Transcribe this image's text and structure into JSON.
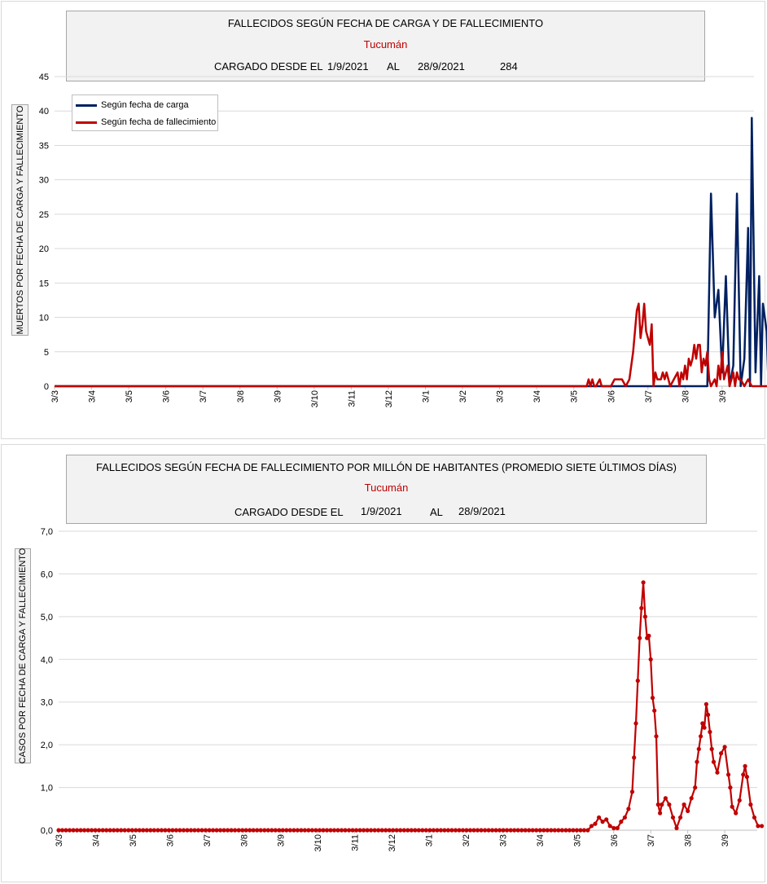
{
  "chart1": {
    "title": "FALLECIDOS SEGÚN FECHA DE CARGA Y DE FALLECIMIENTO",
    "subtitle": "Tucumán",
    "loaded_label": "CARGADO DESDE EL",
    "date_from": "1/9/2021",
    "al_label": "AL",
    "date_to": "28/9/2021",
    "total": "284",
    "ylabel": "MUERTOS  POR FECHA DE CARGA  Y FALLECIMIENTO",
    "legend": [
      {
        "name": "Según fecha de carga",
        "color": "#002060"
      },
      {
        "name": "Según fecha de fallecimiento",
        "color": "#c00000"
      }
    ]
  },
  "chart2": {
    "title": "FALLECIDOS SEGÚN FECHA DE FALLECIMIENTO POR MILLÓN DE HABITANTES (PROMEDIO SIETE ÚLTIMOS DÍAS)",
    "subtitle": "Tucumán",
    "loaded_label": "CARGADO DESDE EL",
    "date_from": "1/9/2021",
    "al_label": "AL",
    "date_to": "28/9/2021",
    "ylabel": "CASOS POR FECHA DE CARGA  Y FALLECIMIENTO"
  },
  "chart_data": [
    {
      "type": "line",
      "title": "FALLECIDOS SEGÚN FECHA DE CARGA Y DE FALLECIMIENTO",
      "subtitle": "Tucumán",
      "ylabel": "MUERTOS  POR FECHA DE CARGA  Y FALLECIMIENTO",
      "ylim": [
        0,
        45
      ],
      "yticks": [
        "0",
        "5",
        "10",
        "15",
        "20",
        "25",
        "30",
        "35",
        "40",
        "45"
      ],
      "x_tick_labels": [
        "3/3",
        "3/4",
        "3/5",
        "3/6",
        "3/7",
        "3/8",
        "3/9",
        "3/10",
        "3/11",
        "3/12",
        "3/1",
        "3/2",
        "3/3",
        "3/4",
        "3/5",
        "3/6",
        "3/7",
        "3/8",
        "3/9"
      ],
      "grid": true,
      "legend_position": "top-left",
      "series": [
        {
          "name": "Según fecha de carga",
          "color": "#002060",
          "points": [
            [
              0,
              0
            ],
            [
              17.6,
              0
            ],
            [
              17.7,
              28
            ],
            [
              17.8,
              10
            ],
            [
              17.9,
              14
            ],
            [
              18.0,
              2
            ],
            [
              18.1,
              16
            ],
            [
              18.2,
              0
            ],
            [
              18.3,
              3
            ],
            [
              18.4,
              28
            ],
            [
              18.5,
              0
            ],
            [
              18.6,
              4
            ],
            [
              18.7,
              23
            ],
            [
              18.75,
              0
            ],
            [
              18.8,
              39
            ],
            [
              18.9,
              2
            ],
            [
              19.0,
              16
            ],
            [
              19.05,
              0
            ],
            [
              19.1,
              12
            ],
            [
              19.2,
              8
            ],
            [
              19.25,
              0
            ],
            [
              19.3,
              0
            ],
            [
              19.4,
              13
            ],
            [
              19.5,
              0
            ]
          ]
        },
        {
          "name": "Según fecha de fallecimiento",
          "color": "#c00000",
          "points": [
            [
              0,
              0
            ],
            [
              14.35,
              0
            ],
            [
              14.4,
              1
            ],
            [
              14.45,
              0
            ],
            [
              14.5,
              1
            ],
            [
              14.55,
              0
            ],
            [
              14.6,
              0
            ],
            [
              14.7,
              1
            ],
            [
              14.75,
              0
            ],
            [
              15.0,
              0
            ],
            [
              15.1,
              1
            ],
            [
              15.2,
              1
            ],
            [
              15.3,
              1
            ],
            [
              15.4,
              0
            ],
            [
              15.5,
              1
            ],
            [
              15.6,
              5
            ],
            [
              15.7,
              11
            ],
            [
              15.75,
              12
            ],
            [
              15.8,
              7
            ],
            [
              15.85,
              9
            ],
            [
              15.9,
              12
            ],
            [
              15.95,
              8
            ],
            [
              16.0,
              7
            ],
            [
              16.05,
              6
            ],
            [
              16.1,
              9
            ],
            [
              16.15,
              0
            ],
            [
              16.2,
              2
            ],
            [
              16.25,
              1
            ],
            [
              16.3,
              1
            ],
            [
              16.35,
              1
            ],
            [
              16.4,
              2
            ],
            [
              16.45,
              1
            ],
            [
              16.5,
              2
            ],
            [
              16.55,
              1
            ],
            [
              16.6,
              0
            ],
            [
              16.8,
              2
            ],
            [
              16.85,
              0
            ],
            [
              16.9,
              2
            ],
            [
              16.95,
              1
            ],
            [
              17.0,
              3
            ],
            [
              17.05,
              1
            ],
            [
              17.1,
              4
            ],
            [
              17.15,
              3
            ],
            [
              17.2,
              4
            ],
            [
              17.25,
              6
            ],
            [
              17.3,
              4
            ],
            [
              17.35,
              6
            ],
            [
              17.4,
              6
            ],
            [
              17.45,
              2
            ],
            [
              17.5,
              4
            ],
            [
              17.55,
              3
            ],
            [
              17.6,
              5
            ],
            [
              17.65,
              1
            ],
            [
              17.7,
              0
            ],
            [
              17.8,
              1
            ],
            [
              17.85,
              0
            ],
            [
              17.9,
              3
            ],
            [
              17.95,
              1
            ],
            [
              18.0,
              5
            ],
            [
              18.05,
              1
            ],
            [
              18.1,
              2
            ],
            [
              18.15,
              3
            ],
            [
              18.2,
              0
            ],
            [
              18.3,
              2
            ],
            [
              18.35,
              0
            ],
            [
              18.4,
              2
            ],
            [
              18.45,
              1
            ],
            [
              18.5,
              1
            ],
            [
              18.6,
              0
            ],
            [
              18.7,
              1
            ],
            [
              18.8,
              0
            ],
            [
              19.0,
              0
            ],
            [
              19.5,
              0
            ]
          ]
        }
      ]
    },
    {
      "type": "line",
      "title": "FALLECIDOS SEGÚN FECHA DE FALLECIMIENTO POR MILLÓN DE HABITANTES (PROMEDIO SIETE ÚLTIMOS DÍAS)",
      "subtitle": "Tucumán",
      "ylabel": "CASOS POR FECHA DE CARGA  Y FALLECIMIENTO",
      "ylim": [
        0,
        7
      ],
      "yticks": [
        "0,0",
        "1,0",
        "2,0",
        "3,0",
        "4,0",
        "5,0",
        "6,0",
        "7,0"
      ],
      "x_tick_labels": [
        "3/3",
        "3/4",
        "3/5",
        "3/6",
        "3/7",
        "3/8",
        "3/9",
        "3/10",
        "3/11",
        "3/12",
        "3/1",
        "3/2",
        "3/3",
        "3/4",
        "3/5",
        "3/6",
        "3/7",
        "3/8",
        "3/9"
      ],
      "grid": true,
      "series": [
        {
          "name": "",
          "color": "#c00000",
          "points": [
            [
              0,
              0
            ],
            [
              14.3,
              0
            ],
            [
              14.4,
              0.1
            ],
            [
              14.5,
              0.15
            ],
            [
              14.6,
              0.3
            ],
            [
              14.7,
              0.2
            ],
            [
              14.8,
              0.25
            ],
            [
              14.9,
              0.1
            ],
            [
              15.0,
              0.05
            ],
            [
              15.1,
              0.05
            ],
            [
              15.2,
              0.2
            ],
            [
              15.3,
              0.3
            ],
            [
              15.4,
              0.5
            ],
            [
              15.5,
              0.9
            ],
            [
              15.55,
              1.7
            ],
            [
              15.6,
              2.5
            ],
            [
              15.65,
              3.5
            ],
            [
              15.7,
              4.5
            ],
            [
              15.75,
              5.2
            ],
            [
              15.8,
              5.8
            ],
            [
              15.85,
              5.0
            ],
            [
              15.9,
              4.5
            ],
            [
              15.95,
              4.55
            ],
            [
              16.0,
              4.0
            ],
            [
              16.05,
              3.1
            ],
            [
              16.1,
              2.8
            ],
            [
              16.15,
              2.2
            ],
            [
              16.2,
              0.6
            ],
            [
              16.25,
              0.4
            ],
            [
              16.3,
              0.6
            ],
            [
              16.4,
              0.75
            ],
            [
              16.5,
              0.6
            ],
            [
              16.6,
              0.3
            ],
            [
              16.7,
              0.05
            ],
            [
              16.8,
              0.3
            ],
            [
              16.9,
              0.6
            ],
            [
              17.0,
              0.45
            ],
            [
              17.1,
              0.75
            ],
            [
              17.2,
              1.0
            ],
            [
              17.25,
              1.6
            ],
            [
              17.3,
              1.9
            ],
            [
              17.35,
              2.2
            ],
            [
              17.4,
              2.5
            ],
            [
              17.45,
              2.4
            ],
            [
              17.5,
              2.95
            ],
            [
              17.55,
              2.7
            ],
            [
              17.6,
              2.3
            ],
            [
              17.65,
              1.9
            ],
            [
              17.7,
              1.6
            ],
            [
              17.8,
              1.35
            ],
            [
              17.9,
              1.8
            ],
            [
              18.0,
              1.95
            ],
            [
              18.1,
              1.3
            ],
            [
              18.15,
              1.0
            ],
            [
              18.2,
              0.55
            ],
            [
              18.3,
              0.4
            ],
            [
              18.4,
              0.7
            ],
            [
              18.5,
              1.3
            ],
            [
              18.55,
              1.5
            ],
            [
              18.6,
              1.25
            ],
            [
              18.7,
              0.6
            ],
            [
              18.8,
              0.3
            ],
            [
              18.9,
              0.1
            ],
            [
              19.0,
              0.1
            ]
          ]
        }
      ]
    }
  ]
}
